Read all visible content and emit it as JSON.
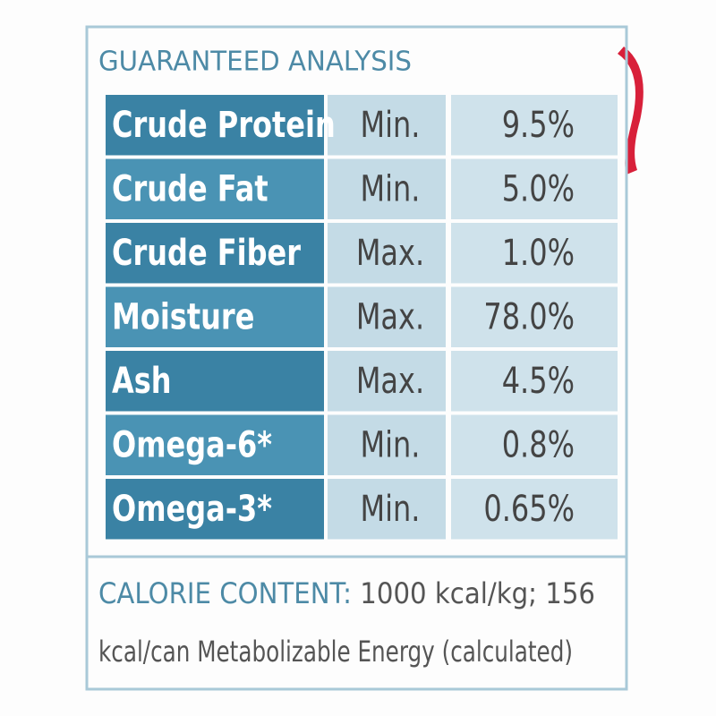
{
  "header": {
    "title": "GUARANTEED ANALYSIS"
  },
  "table": {
    "rows": [
      [
        "Crude Protein",
        "Min.",
        "9.5%"
      ],
      [
        "Crude Fat",
        "Min.",
        "5.0%"
      ],
      [
        "Crude Fiber",
        "Max.",
        "1.0%"
      ],
      [
        "Moisture",
        "Max.",
        "78.0%"
      ],
      [
        "Ash",
        "Max.",
        "4.5%"
      ],
      [
        "Omega-6*",
        "Min.",
        "0.8%"
      ],
      [
        "Omega-3*",
        "Min.",
        "0.65%"
      ]
    ]
  },
  "calorie": {
    "label": "CALORIE CONTENT:",
    "lines": [
      "1000 kcal/kg; 156",
      "kcal/can Metabolizable Energy (calculated)"
    ]
  }
}
